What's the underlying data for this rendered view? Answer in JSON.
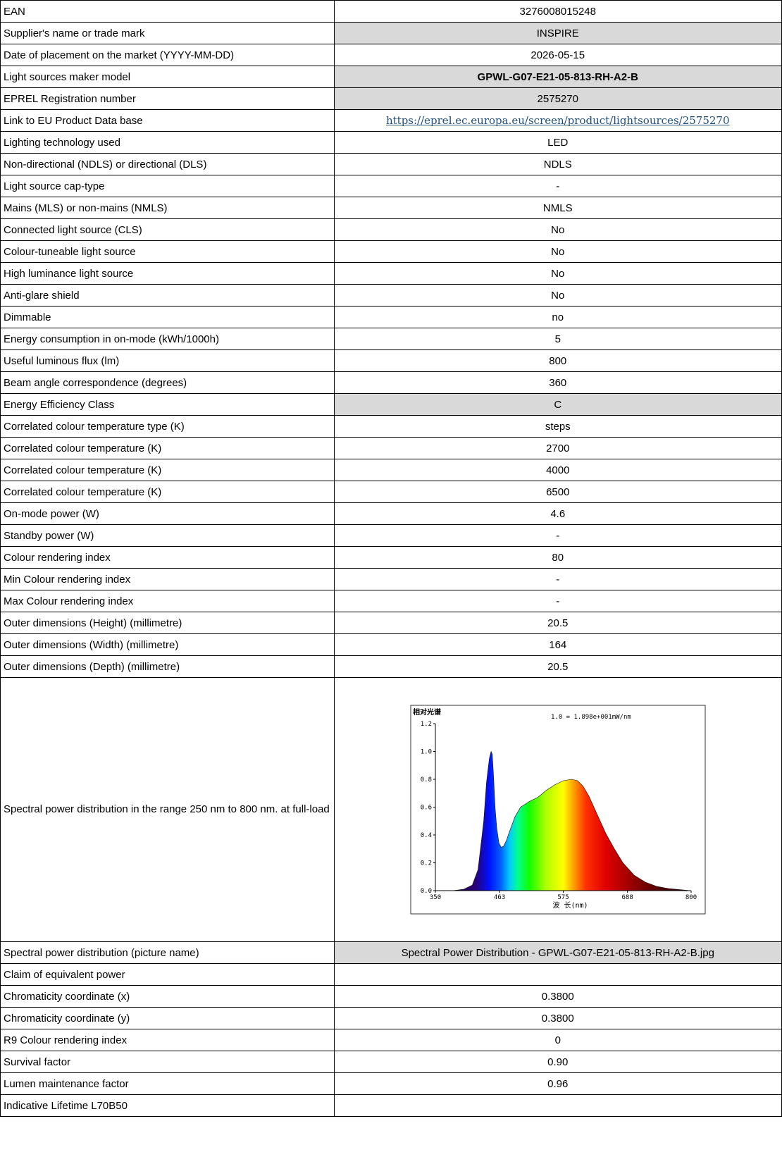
{
  "rows": [
    {
      "label": "EAN",
      "value": "3276008015248"
    },
    {
      "label": "Supplier's name or trade mark",
      "value": "INSPIRE"
    },
    {
      "label": "Date of placement on the market (YYYY-MM-DD)",
      "value": "2026-05-15"
    },
    {
      "label": "Light sources maker model",
      "value": "GPWL-G07-E21-05-813-RH-A2-B"
    },
    {
      "label": "EPREL Registration number",
      "value": "2575270"
    },
    {
      "label": "Link to EU Product Data base",
      "value": "https://eprel.ec.europa.eu/screen/product/lightsources/2575270"
    },
    {
      "label": "Lighting technology used",
      "value": "LED"
    },
    {
      "label": "Non-directional (NDLS) or directional (DLS)",
      "value": "NDLS"
    },
    {
      "label": "Light source cap-type",
      "value": "-"
    },
    {
      "label": "Mains (MLS) or non-mains (NMLS)",
      "value": "NMLS"
    },
    {
      "label": "Connected light source (CLS)",
      "value": "No"
    },
    {
      "label": "Colour-tuneable light source",
      "value": "No"
    },
    {
      "label": "High luminance light source",
      "value": "No"
    },
    {
      "label": "Anti-glare shield",
      "value": "No"
    },
    {
      "label": "Dimmable",
      "value": "no"
    },
    {
      "label": "Energy consumption in on-mode (kWh/1000h)",
      "value": "5"
    },
    {
      "label": "Useful luminous flux (lm)",
      "value": "800"
    },
    {
      "label": "Beam angle correspondence  (degrees)",
      "value": "360"
    },
    {
      "label": "Energy Efficiency Class",
      "value": "C"
    },
    {
      "label": "Correlated colour temperature type (K)",
      "value": "steps"
    },
    {
      "label": "Correlated colour temperature (K)",
      "value": "2700"
    },
    {
      "label": "Correlated colour temperature (K)",
      "value": "4000"
    },
    {
      "label": "Correlated colour temperature (K)",
      "value": "6500"
    },
    {
      "label": "On-mode power (W)",
      "value": "4.6"
    },
    {
      "label": "Standby power (W)",
      "value": "-"
    },
    {
      "label": "Colour rendering index",
      "value": "80"
    },
    {
      "label": "Min Colour rendering index",
      "value": "-"
    },
    {
      "label": "Max Colour rendering index",
      "value": "-"
    },
    {
      "label": "Outer dimensions (Height) (millimetre)",
      "value": "20.5"
    },
    {
      "label": "Outer dimensions (Width) (millimetre)",
      "value": "164"
    },
    {
      "label": "Outer dimensions (Depth) (millimetre)",
      "value": "20.5"
    },
    {
      "label": "Spectral power distribution in the range 250 nm to 800 nm. at full-load",
      "value": ""
    },
    {
      "label": "Spectral power distribution (picture name)",
      "value": "Spectral Power Distribution - GPWL-G07-E21-05-813-RH-A2-B.jpg"
    },
    {
      "label": "Claim of equivalent power",
      "value": ""
    },
    {
      "label": "Chromaticity coordinate (x)",
      "value": "0.3800"
    },
    {
      "label": "Chromaticity coordinate (y)",
      "value": "0.3800"
    },
    {
      "label": "R9 Colour rendering index",
      "value": "0"
    },
    {
      "label": "Survival factor",
      "value": "0.90"
    },
    {
      "label": "Lumen maintenance factor",
      "value": "0.96"
    },
    {
      "label": "Indicative Lifetime L70B50",
      "value": ""
    }
  ],
  "chart_data": {
    "type": "area",
    "title": "相对光谱",
    "annotation": "1.0 = 1.898e+001mW/nm",
    "xlabel": "波 长(nm)",
    "ylabel": "",
    "xlim": [
      350,
      800
    ],
    "ylim": [
      0,
      1.2
    ],
    "x_ticks": [
      "350",
      "463",
      "575",
      "688",
      "800"
    ],
    "y_ticks": [
      "0.0",
      "0.2",
      "0.4",
      "0.6",
      "0.8",
      "1.0",
      "1.2"
    ],
    "x": [
      350,
      380,
      400,
      415,
      425,
      435,
      440,
      445,
      448,
      450,
      452,
      455,
      458,
      462,
      466,
      470,
      475,
      480,
      490,
      500,
      515,
      530,
      545,
      560,
      575,
      590,
      600,
      610,
      620,
      630,
      640,
      650,
      665,
      680,
      700,
      720,
      740,
      760,
      780,
      800
    ],
    "values": [
      0.0,
      0.0,
      0.01,
      0.04,
      0.15,
      0.5,
      0.78,
      0.95,
      1.0,
      0.98,
      0.85,
      0.6,
      0.45,
      0.34,
      0.31,
      0.32,
      0.36,
      0.42,
      0.53,
      0.6,
      0.64,
      0.67,
      0.72,
      0.76,
      0.79,
      0.8,
      0.79,
      0.75,
      0.68,
      0.59,
      0.5,
      0.41,
      0.3,
      0.2,
      0.11,
      0.06,
      0.03,
      0.015,
      0.007,
      0.0
    ]
  }
}
